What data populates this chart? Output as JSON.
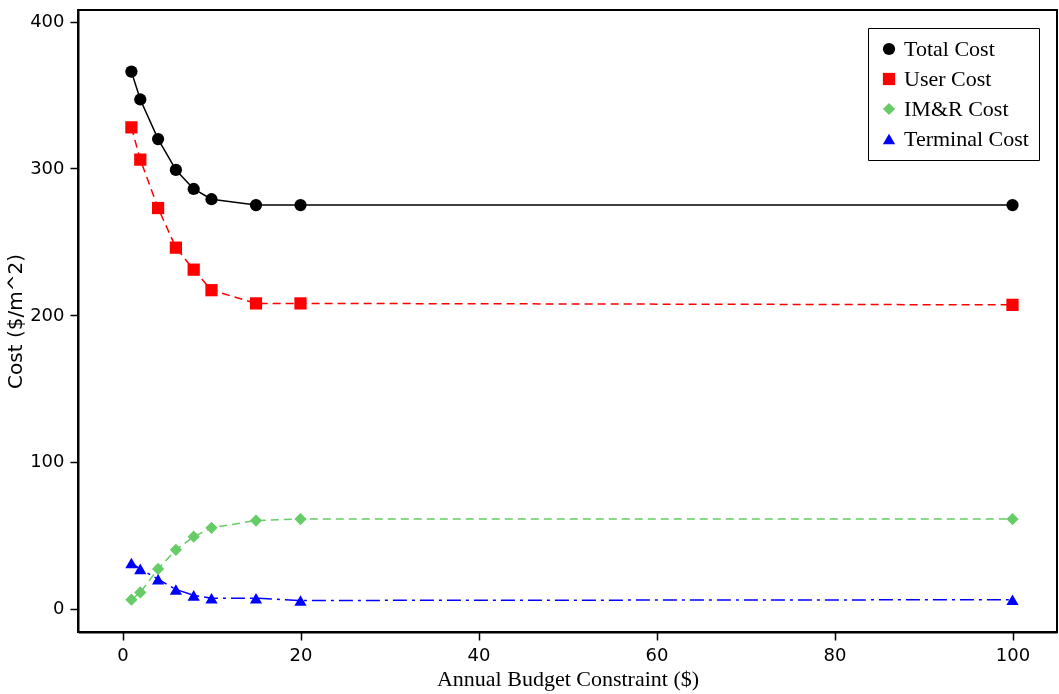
{
  "chart_data": {
    "type": "line",
    "xlabel": "Annual Budget Constraint ($)",
    "ylabel": "Cost  ($/m^2)",
    "x": [
      1,
      2,
      4,
      6,
      8,
      10,
      15,
      20,
      100
    ],
    "xlim": [
      -5,
      105
    ],
    "xticks": [
      0,
      20,
      40,
      60,
      80,
      100
    ],
    "ylim": [
      -16,
      408
    ],
    "yticks": [
      0,
      100,
      200,
      300,
      400
    ],
    "grid": false,
    "legend": "top right",
    "series": [
      {
        "name": "Total Cost",
        "color": "#000000",
        "marker": "circle",
        "line_style": "solid",
        "values": [
          366,
          347,
          320,
          299,
          286,
          279,
          275,
          275,
          275
        ]
      },
      {
        "name": "User Cost",
        "color": "#ff0000",
        "marker": "square",
        "line_style": "dashed",
        "values": [
          328,
          306,
          273,
          246,
          231,
          217,
          208,
          208,
          207
        ]
      },
      {
        "name": "IM&R Cost",
        "color": "#66cc66",
        "marker": "diamond",
        "line_style": "dashed",
        "values": [
          6,
          11,
          27,
          40,
          49,
          55,
          60,
          61,
          61
        ]
      },
      {
        "name": "Terminal Cost",
        "color": "#0000ff",
        "marker": "triangle",
        "line_style": "dashdot",
        "values": [
          31,
          27,
          20,
          13,
          9,
          7,
          7,
          5.5,
          6
        ]
      }
    ]
  }
}
